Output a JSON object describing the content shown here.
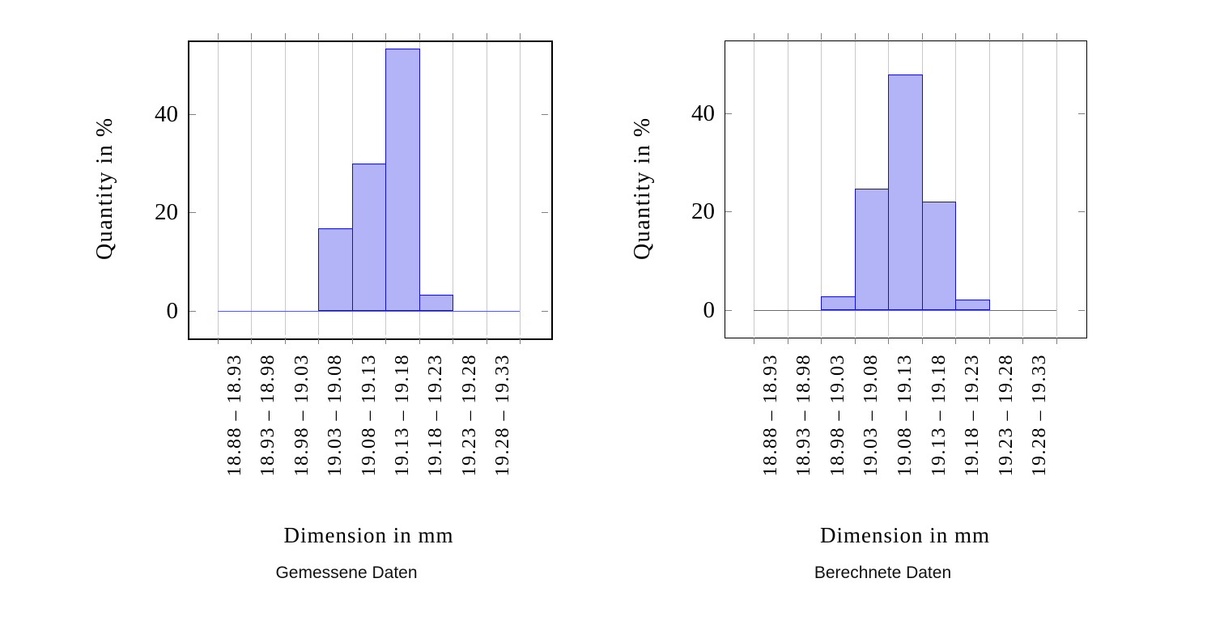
{
  "page": {
    "background_color": "#ffffff"
  },
  "colors": {
    "bar_fill": "#b3b3f8",
    "bar_stroke": "#1010d8",
    "baseline": "#5c5ce0",
    "gridline": "#c9c9c9",
    "tick": "#808080",
    "frame": "#000000",
    "text": "#000000"
  },
  "chart_data": [
    {
      "type": "bar",
      "variant": "histogram",
      "title": "Gemessene Daten",
      "xlabel": "Dimension in mm",
      "ylabel": "Quantity in %",
      "categories": [
        "18.88 – 18.93",
        "18.93 – 18.98",
        "18.98 – 19.03",
        "19.03 – 19.08",
        "19.08 – 19.13",
        "19.13 – 19.18",
        "19.18 – 19.23",
        "19.23 – 19.28",
        "19.28 – 19.33"
      ],
      "bin_edges": [
        18.88,
        18.93,
        18.98,
        19.03,
        19.08,
        19.13,
        19.18,
        19.23,
        19.28,
        19.33
      ],
      "values": [
        0,
        0,
        0,
        16.7,
        30.0,
        53.3,
        3.3,
        0,
        0
      ],
      "yticks": [
        0,
        20,
        40
      ],
      "ylim": [
        -5.3,
        55.0
      ],
      "grid": "vertical",
      "legend": "none"
    },
    {
      "type": "bar",
      "variant": "histogram",
      "title": "Berechnete Daten",
      "xlabel": "Dimension in mm",
      "ylabel": "Quantity in %",
      "categories": [
        "18.88 – 18.93",
        "18.93 – 18.98",
        "18.98 – 19.03",
        "19.03 – 19.08",
        "19.08 – 19.13",
        "19.13 – 19.18",
        "19.18 – 19.23",
        "19.23 – 19.28",
        "19.28 – 19.33"
      ],
      "bin_edges": [
        18.88,
        18.93,
        18.98,
        19.03,
        19.08,
        19.13,
        19.18,
        19.23,
        19.28,
        19.33
      ],
      "values": [
        0,
        0,
        2.8,
        24.6,
        47.9,
        22.0,
        2.2,
        0,
        0
      ],
      "yticks": [
        0,
        20,
        40
      ],
      "ylim": [
        -5.3,
        55.0
      ],
      "grid": "vertical",
      "legend": "none"
    }
  ]
}
